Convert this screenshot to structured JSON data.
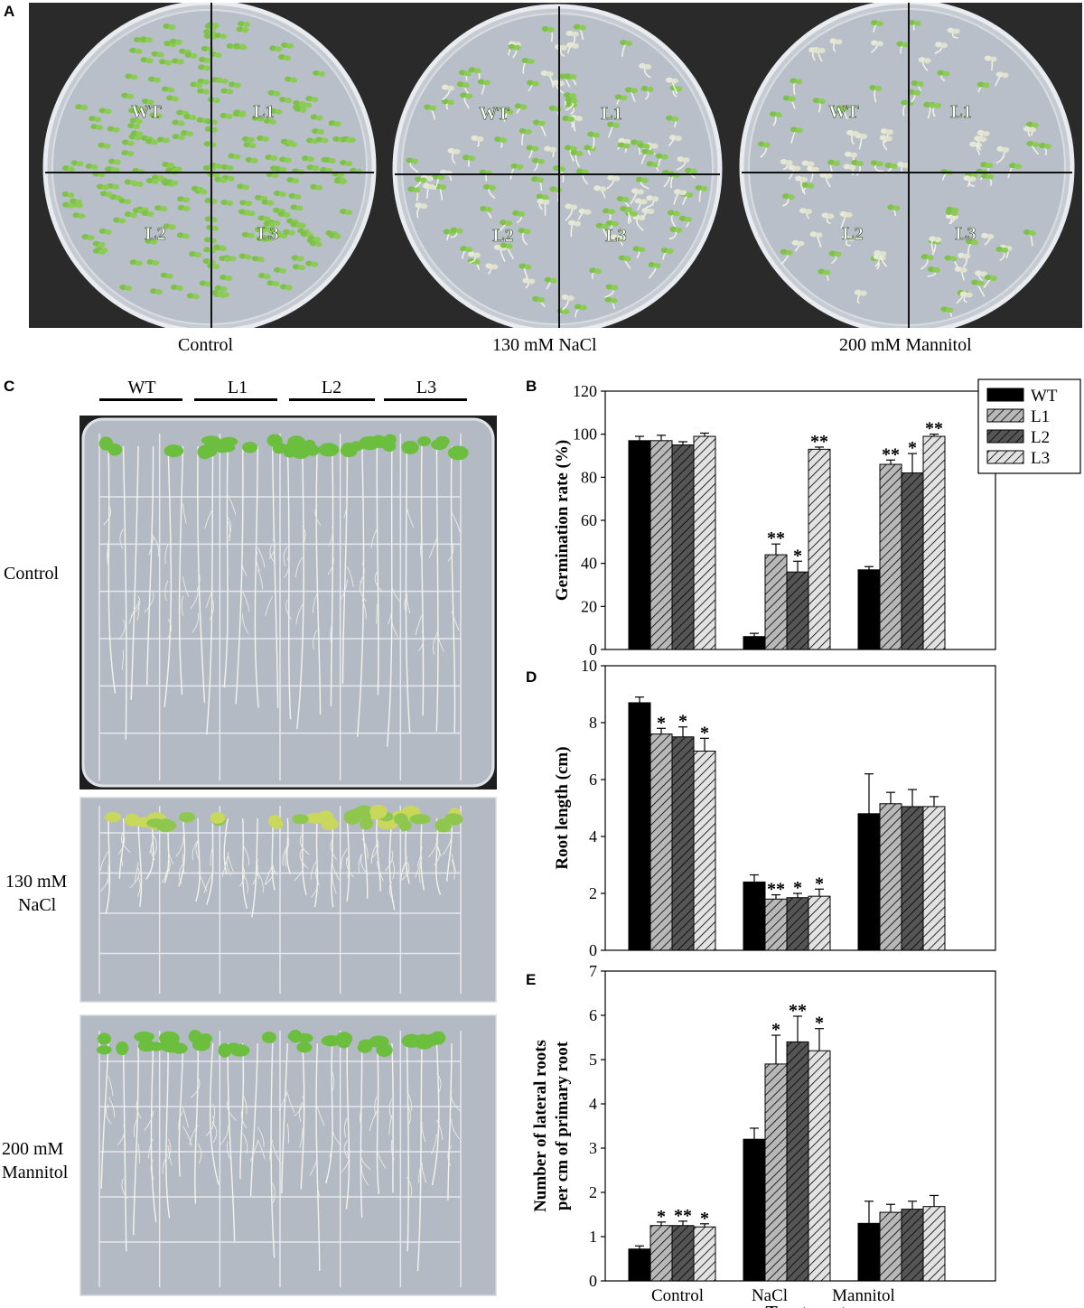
{
  "panel_a": {
    "letter": "A",
    "plates": [
      {
        "caption": "Control",
        "quadrants": [
          "WT",
          "L1",
          "L2",
          "L3"
        ],
        "density": 1.0
      },
      {
        "caption": "130 mM NaCl",
        "quadrants": [
          "WT",
          "L1",
          "L2",
          "L3"
        ],
        "density": 0.55
      },
      {
        "caption": "200 mM Mannitol",
        "quadrants": [
          "WT",
          "L1",
          "L2",
          "L3"
        ],
        "density": 0.4
      }
    ]
  },
  "panel_c": {
    "letter": "C",
    "genotype_headers": [
      "WT",
      "L1",
      "L2",
      "L3"
    ],
    "rows": [
      {
        "label_lines": [
          "Control"
        ]
      },
      {
        "label_lines": [
          "130 mM",
          "NaCl"
        ]
      },
      {
        "label_lines": [
          "200 mM",
          "Mannitol"
        ]
      }
    ]
  },
  "colors": {
    "wt": "#000000",
    "l1": "#b8b8b8",
    "l2": "#555555",
    "l3": "#e2e2e2",
    "plate_agar": "#c9ced6",
    "seedling": "#7dc04a"
  },
  "chart_data": [
    {
      "panel": "B",
      "type": "bar",
      "ylabel": "Germination rate (%)",
      "ylim": [
        0,
        120
      ],
      "yticks": [
        0,
        20,
        40,
        60,
        80,
        100,
        120
      ],
      "categories": [
        "Control",
        "NaCl",
        "Mannitol"
      ],
      "legend_position": "top-right",
      "series": [
        {
          "name": "WT",
          "values": [
            97,
            6,
            37
          ],
          "errors": [
            2,
            1.5,
            1.5
          ],
          "sig": [
            "",
            "",
            ""
          ]
        },
        {
          "name": "L1",
          "values": [
            97,
            44,
            86
          ],
          "errors": [
            2.5,
            5,
            2
          ],
          "sig": [
            "",
            "**",
            "**"
          ]
        },
        {
          "name": "L2",
          "values": [
            95,
            36,
            82
          ],
          "errors": [
            1.5,
            5,
            9
          ],
          "sig": [
            "",
            "*",
            "*"
          ]
        },
        {
          "name": "L3",
          "values": [
            99,
            93,
            99
          ],
          "errors": [
            1.5,
            1,
            1
          ],
          "sig": [
            "",
            "**",
            "**"
          ]
        }
      ]
    },
    {
      "panel": "D",
      "type": "bar",
      "ylabel": "Root length (cm)",
      "ylim": [
        0,
        10
      ],
      "yticks": [
        0,
        2,
        4,
        6,
        8,
        10
      ],
      "categories": [
        "Control",
        "NaCl",
        "Mannitol"
      ],
      "series": [
        {
          "name": "WT",
          "values": [
            8.7,
            2.4,
            4.8
          ],
          "errors": [
            0.2,
            0.25,
            1.4
          ],
          "sig": [
            "",
            "",
            ""
          ]
        },
        {
          "name": "L1",
          "values": [
            7.6,
            1.8,
            5.15
          ],
          "errors": [
            0.2,
            0.15,
            0.4
          ],
          "sig": [
            "*",
            "**",
            ""
          ]
        },
        {
          "name": "L2",
          "values": [
            7.5,
            1.85,
            5.05
          ],
          "errors": [
            0.35,
            0.15,
            0.6
          ],
          "sig": [
            "*",
            "*",
            ""
          ]
        },
        {
          "name": "L3",
          "values": [
            7.0,
            1.9,
            5.05
          ],
          "errors": [
            0.45,
            0.25,
            0.35
          ],
          "sig": [
            "*",
            "*",
            ""
          ]
        }
      ]
    },
    {
      "panel": "E",
      "type": "bar",
      "ylabel_lines": [
        "Number of lateral roots",
        "per cm of primary root"
      ],
      "xlabel": "Treatments",
      "ylim": [
        0,
        7
      ],
      "yticks": [
        0,
        1,
        2,
        3,
        4,
        5,
        6,
        7
      ],
      "categories": [
        "Control",
        "NaCl",
        "Mannitol"
      ],
      "series": [
        {
          "name": "WT",
          "values": [
            0.72,
            3.2,
            1.3
          ],
          "errors": [
            0.07,
            0.25,
            0.5
          ],
          "sig": [
            "",
            "",
            ""
          ]
        },
        {
          "name": "L1",
          "values": [
            1.25,
            4.9,
            1.55
          ],
          "errors": [
            0.08,
            0.65,
            0.18
          ],
          "sig": [
            "*",
            "*",
            ""
          ]
        },
        {
          "name": "L2",
          "values": [
            1.25,
            5.4,
            1.62
          ],
          "errors": [
            0.1,
            0.58,
            0.18
          ],
          "sig": [
            "**",
            "**",
            ""
          ]
        },
        {
          "name": "L3",
          "values": [
            1.22,
            5.2,
            1.68
          ],
          "errors": [
            0.07,
            0.5,
            0.25
          ],
          "sig": [
            "*",
            "*",
            ""
          ]
        }
      ]
    }
  ]
}
